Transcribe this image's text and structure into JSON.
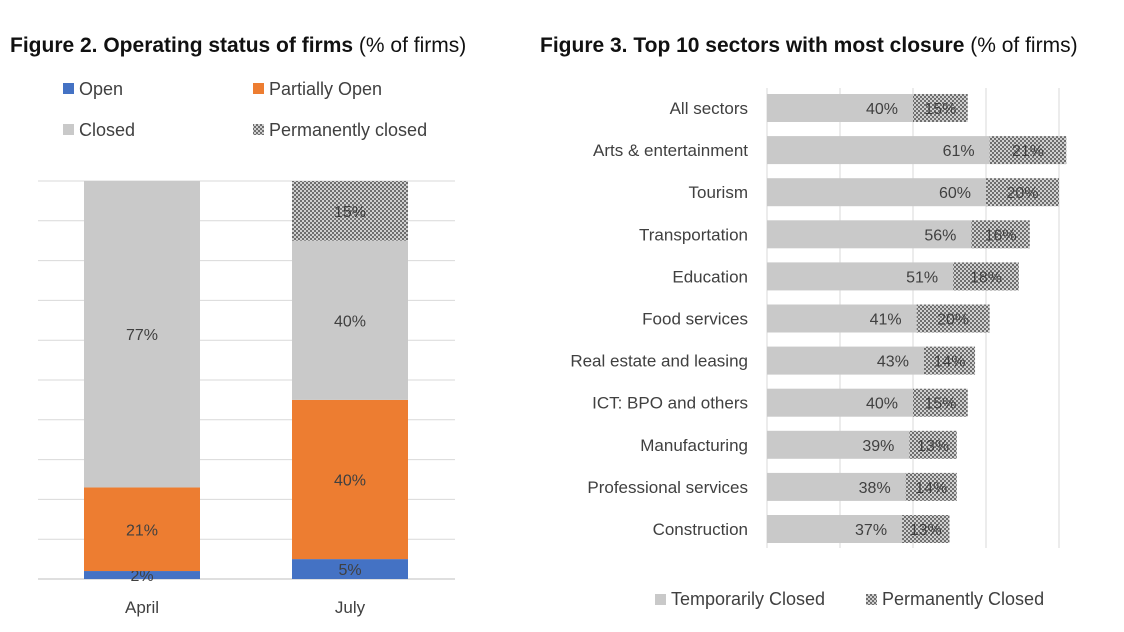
{
  "figure2": {
    "title_bold": "Figure 2. Operating status of firms",
    "title_unit": "(% of firms)"
  },
  "figure3": {
    "title_bold": "Figure 3. Top 10 sectors with most closure",
    "title_unit": "(% of firms)"
  },
  "colors": {
    "open": "#4472c4",
    "partially_open": "#ed7d31",
    "closed": "#c9c9c9",
    "permanently_closed": "#8a8a8a",
    "grid": "#d9d9d9"
  },
  "chart_data": [
    {
      "type": "bar",
      "stacked": true,
      "orientation": "vertical",
      "title": "Figure 2. Operating status of firms (% of firms)",
      "categories": [
        "April",
        "July"
      ],
      "series": [
        {
          "name": "Open",
          "values": [
            2,
            5
          ],
          "labels": [
            "2%",
            "5%"
          ],
          "color": "#4472c4"
        },
        {
          "name": "Partially Open",
          "values": [
            21,
            40
          ],
          "labels": [
            "21%",
            "40%"
          ],
          "color": "#ed7d31"
        },
        {
          "name": "Closed",
          "values": [
            77,
            40
          ],
          "labels": [
            "77%",
            "40%"
          ],
          "color": "#c9c9c9"
        },
        {
          "name": "Permanently closed",
          "values": [
            0,
            15
          ],
          "labels": [
            "",
            "15%"
          ],
          "pattern": "checker"
        }
      ],
      "ylim": [
        0,
        100
      ],
      "grid": true,
      "legend": "top"
    },
    {
      "type": "bar",
      "stacked": true,
      "orientation": "horizontal",
      "title": "Figure 3. Top 10 sectors with most closure (% of firms)",
      "categories": [
        "All sectors",
        "Arts & entertainment",
        "Tourism",
        "Transportation",
        "Education",
        "Food services",
        "Real estate and leasing",
        "ICT: BPO and others",
        "Manufacturing",
        "Professional services",
        "Construction"
      ],
      "series": [
        {
          "name": "Temporarily Closed",
          "values": [
            40,
            61,
            60,
            56,
            51,
            41,
            43,
            40,
            39,
            38,
            37
          ],
          "labels": [
            "40%",
            "61%",
            "60%",
            "56%",
            "51%",
            "41%",
            "43%",
            "40%",
            "39%",
            "38%",
            "37%"
          ],
          "color": "#c9c9c9"
        },
        {
          "name": "Permanently Closed",
          "values": [
            15,
            21,
            20,
            16,
            18,
            20,
            14,
            15,
            13,
            14,
            13
          ],
          "labels": [
            "15%",
            "21%",
            "20%",
            "16%",
            "18%",
            "20%",
            "14%",
            "15%",
            "13%",
            "14%",
            "13%"
          ],
          "pattern": "checker"
        }
      ],
      "xlim": [
        0,
        100
      ],
      "grid": true,
      "legend": "bottom"
    }
  ]
}
